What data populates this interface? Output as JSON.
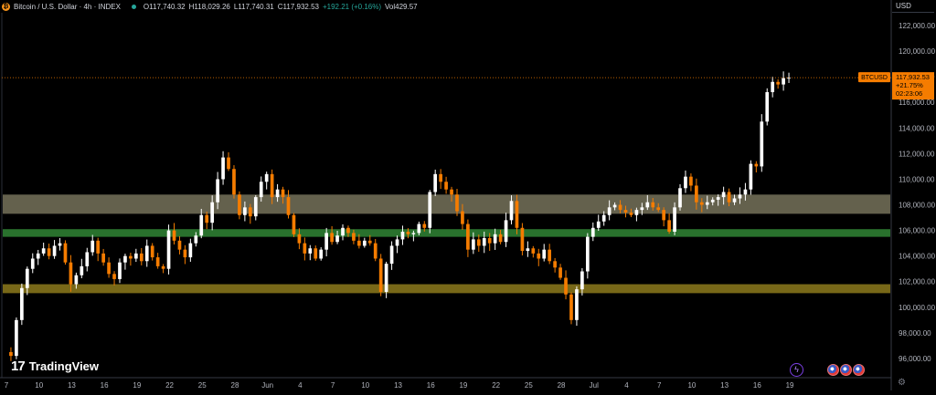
{
  "header": {
    "title": "Bitcoin / U.S. Dollar · 4h · INDEX",
    "open_label": "O",
    "open": "117,740.32",
    "high_label": "H",
    "high": "118,029.26",
    "low_label": "L",
    "low": "117,740.31",
    "close_label": "C",
    "close": "117,932.53",
    "change": "+192.21 (+0.16%)",
    "vol_label": "Vol",
    "vol": "429.57"
  },
  "currency": "USD",
  "branding": {
    "logo_mark": "17",
    "logo_text": "TradingView"
  },
  "price_tag": {
    "symbol": "BTCUSD",
    "price": "117,932.53",
    "change": "+21.75%",
    "countdown": "02:23:06"
  },
  "icons": {
    "bitcoin": "bitcoin-icon",
    "status": "market-open-dot-icon",
    "lightning": "lightning-icon",
    "flags": "us-flag-icon",
    "settings": "gear-icon"
  },
  "colors": {
    "background": "#000000",
    "up": "#ffffff",
    "down": "#f57c00",
    "zone_upper": "#76725a",
    "zone_middle": "#2e7d32",
    "zone_lower": "#8d7a1c",
    "price_tag": "#f57c00",
    "axis_text": "#b2b5be"
  },
  "chart_data": {
    "type": "candlestick",
    "title": "Bitcoin / U.S. Dollar · 4h · INDEX",
    "y_axis": {
      "ylim": [
        94500,
        123000
      ],
      "tick_values": [
        96000,
        98000,
        100000,
        102000,
        104000,
        106000,
        108000,
        110000,
        112000,
        114000,
        116000,
        118000,
        120000,
        122000
      ],
      "tick_labels": [
        "96,000.00",
        "98,000.00",
        "100,000.00",
        "102,000.00",
        "104,000.00",
        "106,000.00",
        "108,000.00",
        "110,000.00",
        "112,000.00",
        "114,000.00",
        "116,000.00",
        "118,000.00",
        "120,000.00",
        "122,000.00"
      ],
      "position": "right"
    },
    "x_axis": {
      "tick_labels": [
        "7",
        "10",
        "13",
        "16",
        "19",
        "22",
        "25",
        "28",
        "Jun",
        "4",
        "7",
        "10",
        "13",
        "16",
        "19",
        "22",
        "25",
        "28",
        "Jul",
        "4",
        "7",
        "10",
        "13",
        "16",
        "19"
      ],
      "tick_index": [
        0,
        6,
        12,
        18,
        24,
        30,
        36,
        42,
        48,
        54,
        60,
        66,
        72,
        78,
        84,
        90,
        96,
        102,
        108,
        114,
        120,
        126,
        132,
        138,
        144
      ],
      "visible_range": [
        0,
        145
      ]
    },
    "zones": [
      {
        "name": "upper",
        "from": 107300,
        "to": 108800
      },
      {
        "name": "middle",
        "from": 105500,
        "to": 106100
      },
      {
        "name": "lower",
        "from": 101100,
        "to": 101800
      }
    ],
    "last_price": 117932.53,
    "close_path": [
      [
        0,
        96500
      ],
      [
        1,
        96200
      ],
      [
        2,
        99000
      ],
      [
        3,
        101500
      ],
      [
        4,
        103000
      ],
      [
        5,
        103800
      ],
      [
        6,
        104200
      ],
      [
        7,
        104600
      ],
      [
        8,
        104000
      ],
      [
        9,
        104800
      ],
      [
        10,
        105000
      ],
      [
        11,
        103500
      ],
      [
        12,
        101800
      ],
      [
        13,
        102500
      ],
      [
        14,
        103200
      ],
      [
        15,
        104300
      ],
      [
        16,
        105200
      ],
      [
        17,
        104200
      ],
      [
        18,
        103500
      ],
      [
        19,
        102600
      ],
      [
        20,
        102200
      ],
      [
        21,
        103500
      ],
      [
        22,
        104000
      ],
      [
        23,
        103800
      ],
      [
        24,
        104200
      ],
      [
        25,
        103600
      ],
      [
        26,
        104800
      ],
      [
        27,
        103900
      ],
      [
        28,
        103200
      ],
      [
        29,
        103000
      ],
      [
        30,
        106000
      ],
      [
        31,
        105200
      ],
      [
        32,
        104500
      ],
      [
        33,
        103900
      ],
      [
        34,
        105000
      ],
      [
        35,
        105600
      ],
      [
        36,
        107200
      ],
      [
        37,
        106600
      ],
      [
        38,
        108200
      ],
      [
        39,
        110000
      ],
      [
        40,
        111700
      ],
      [
        41,
        110800
      ],
      [
        42,
        108800
      ],
      [
        43,
        107200
      ],
      [
        44,
        107800
      ],
      [
        45,
        107100
      ],
      [
        46,
        108600
      ],
      [
        47,
        109800
      ],
      [
        48,
        110400
      ],
      [
        49,
        108600
      ],
      [
        50,
        109200
      ],
      [
        51,
        108600
      ],
      [
        52,
        107200
      ],
      [
        53,
        105700
      ],
      [
        54,
        105000
      ],
      [
        55,
        104200
      ],
      [
        56,
        104600
      ],
      [
        57,
        103800
      ],
      [
        58,
        104500
      ],
      [
        59,
        105800
      ],
      [
        60,
        105100
      ],
      [
        61,
        105600
      ],
      [
        62,
        106200
      ],
      [
        63,
        105800
      ],
      [
        64,
        105200
      ],
      [
        65,
        104800
      ],
      [
        66,
        105200
      ],
      [
        67,
        105000
      ],
      [
        68,
        103800
      ],
      [
        69,
        101200
      ],
      [
        70,
        103400
      ],
      [
        71,
        104800
      ],
      [
        72,
        105300
      ],
      [
        73,
        105900
      ],
      [
        74,
        105700
      ],
      [
        75,
        105800
      ],
      [
        76,
        106500
      ],
      [
        77,
        106200
      ],
      [
        78,
        109000
      ],
      [
        79,
        110400
      ],
      [
        80,
        109800
      ],
      [
        81,
        109200
      ],
      [
        82,
        108800
      ],
      [
        83,
        107500
      ],
      [
        84,
        106500
      ],
      [
        85,
        104500
      ],
      [
        86,
        105300
      ],
      [
        87,
        104800
      ],
      [
        88,
        105400
      ],
      [
        89,
        105000
      ],
      [
        90,
        105700
      ],
      [
        91,
        105100
      ],
      [
        92,
        106800
      ],
      [
        93,
        108300
      ],
      [
        94,
        106200
      ],
      [
        95,
        104400
      ],
      [
        96,
        104600
      ],
      [
        97,
        104200
      ],
      [
        98,
        103800
      ],
      [
        99,
        104500
      ],
      [
        100,
        103600
      ],
      [
        101,
        103100
      ],
      [
        102,
        102300
      ],
      [
        103,
        101000
      ],
      [
        104,
        99000
      ],
      [
        105,
        101400
      ],
      [
        106,
        102800
      ],
      [
        107,
        105500
      ],
      [
        108,
        106200
      ],
      [
        109,
        106700
      ],
      [
        110,
        107200
      ],
      [
        111,
        107800
      ],
      [
        112,
        108000
      ],
      [
        113,
        107600
      ],
      [
        114,
        107400
      ],
      [
        115,
        107200
      ],
      [
        116,
        107600
      ],
      [
        117,
        107800
      ],
      [
        118,
        108200
      ],
      [
        119,
        107800
      ],
      [
        120,
        107600
      ],
      [
        121,
        106800
      ],
      [
        122,
        105900
      ],
      [
        123,
        107800
      ],
      [
        124,
        109300
      ],
      [
        125,
        110200
      ],
      [
        126,
        109500
      ],
      [
        127,
        108200
      ],
      [
        128,
        108000
      ],
      [
        129,
        108200
      ],
      [
        130,
        108400
      ],
      [
        131,
        108600
      ],
      [
        132,
        109000
      ],
      [
        133,
        108200
      ],
      [
        134,
        108500
      ],
      [
        135,
        108800
      ],
      [
        136,
        109200
      ],
      [
        137,
        111200
      ],
      [
        138,
        111000
      ],
      [
        139,
        114500
      ],
      [
        140,
        116800
      ],
      [
        141,
        117600
      ],
      [
        142,
        117400
      ],
      [
        143,
        117900
      ],
      [
        144,
        117932.53
      ]
    ]
  }
}
